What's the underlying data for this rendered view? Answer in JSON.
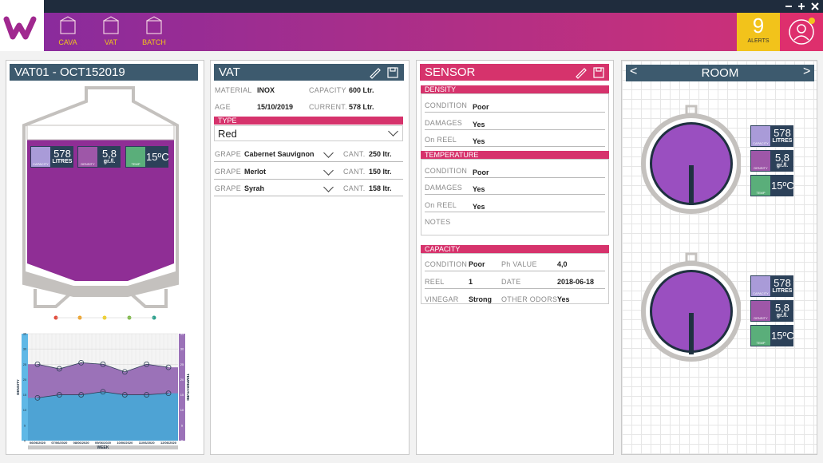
{
  "header": {
    "nav": [
      "CAVA",
      "VAT",
      "BATCH"
    ],
    "alerts": {
      "count": "9",
      "label": "ALERTS"
    }
  },
  "vat_panel": {
    "title": "VAT01 - OCT152019",
    "badges": [
      {
        "value": "578",
        "unit": "LITRES",
        "label": "CAPACITY"
      },
      {
        "value": "5,8",
        "unit": "gr./l.",
        "label": "DENSITY"
      },
      {
        "value": "15ºC",
        "label": "TEMP"
      }
    ],
    "trend": {
      "type": "area",
      "y_label": "DENSITY",
      "y2_label": "TEMPERATURE",
      "x_label": "WEEK",
      "categories": [
        "06/06/2020",
        "07/06/2020",
        "08/06/2020",
        "09/06/2020",
        "10/06/2020",
        "11/06/2020",
        "12/06/2020"
      ],
      "ylim": [
        0,
        35
      ],
      "yticks": [
        0,
        5,
        10,
        15,
        20,
        25,
        30,
        35
      ],
      "y2lim": [
        0,
        35
      ],
      "y2ticks": [
        0,
        5,
        10,
        15,
        20,
        25,
        30,
        35
      ],
      "grid": true,
      "series": [
        {
          "color": "#9b72b8",
          "values": [
            25,
            23.5,
            25.5,
            25,
            22.5,
            25,
            24
          ]
        },
        {
          "color": "#4ea3d4",
          "values": [
            14,
            15,
            15,
            16,
            15,
            15,
            15.5
          ]
        }
      ]
    }
  },
  "vat_form": {
    "title": "VAT",
    "rows": [
      [
        {
          "label": "MATERIAL",
          "value": "INOX"
        },
        {
          "label": "CAPACITY",
          "value": "600 Ltr."
        }
      ],
      [
        {
          "label": "AGE",
          "value": "15/10/2019"
        },
        {
          "label": "CURRENT.",
          "value": "578 Ltr."
        }
      ]
    ],
    "type": {
      "label": "TYPE",
      "value": "Red"
    },
    "grapes": [
      {
        "label": "GRAPE",
        "value": "Cabernet Sauvignon",
        "qty_label": "CANT.",
        "qty": "250 ltr."
      },
      {
        "label": "GRAPE",
        "value": "Merlot",
        "qty_label": "CANT.",
        "qty": "150 ltr."
      },
      {
        "label": "GRAPE",
        "value": "Syrah",
        "qty_label": "CANT.",
        "qty": "158 ltr."
      }
    ]
  },
  "sensor": {
    "title": "SENSOR",
    "sections": [
      {
        "title": "DENSITY",
        "rows": [
          {
            "label": "CONDITION",
            "value": "Poor"
          },
          {
            "label": "DAMAGES",
            "value": "Yes"
          },
          {
            "label": "On REEL",
            "value": "Yes"
          }
        ]
      },
      {
        "title": "TEMPERATURE",
        "rows": [
          {
            "label": "CONDITION",
            "value": "Poor"
          },
          {
            "label": "DAMAGES",
            "value": "Yes"
          },
          {
            "label": "On REEL",
            "value": "Yes"
          }
        ],
        "notes": "NOTES"
      }
    ],
    "capacity": {
      "title": "CAPACITY",
      "rows": [
        [
          {
            "label": "CONDITION",
            "value": "Poor"
          },
          {
            "label": "Ph VALUE",
            "value": "4,0"
          }
        ],
        [
          {
            "label": "REEL",
            "value": "1"
          },
          {
            "label": "DATE",
            "value": "2018-06-18"
          }
        ],
        [
          {
            "label": "VINEGAR",
            "value": "Strong"
          },
          {
            "label": "OTHER ODORS",
            "value": "Yes"
          }
        ]
      ]
    }
  },
  "room": {
    "title": "ROOM",
    "tanks": [
      {
        "badges": [
          {
            "value": "578",
            "unit": "LITRES",
            "label": "CAPACITY"
          },
          {
            "value": "5,8",
            "unit": "gr./l.",
            "label": "DENSITY"
          },
          {
            "value": "15ºC",
            "label": "TEMP"
          }
        ]
      },
      {
        "badges": [
          {
            "value": "578",
            "unit": "LITRES",
            "label": "CAPACITY"
          },
          {
            "value": "5,8",
            "unit": "gr./l.",
            "label": "DENSITY"
          },
          {
            "value": "15ºC",
            "label": "TEMP"
          }
        ]
      }
    ]
  }
}
